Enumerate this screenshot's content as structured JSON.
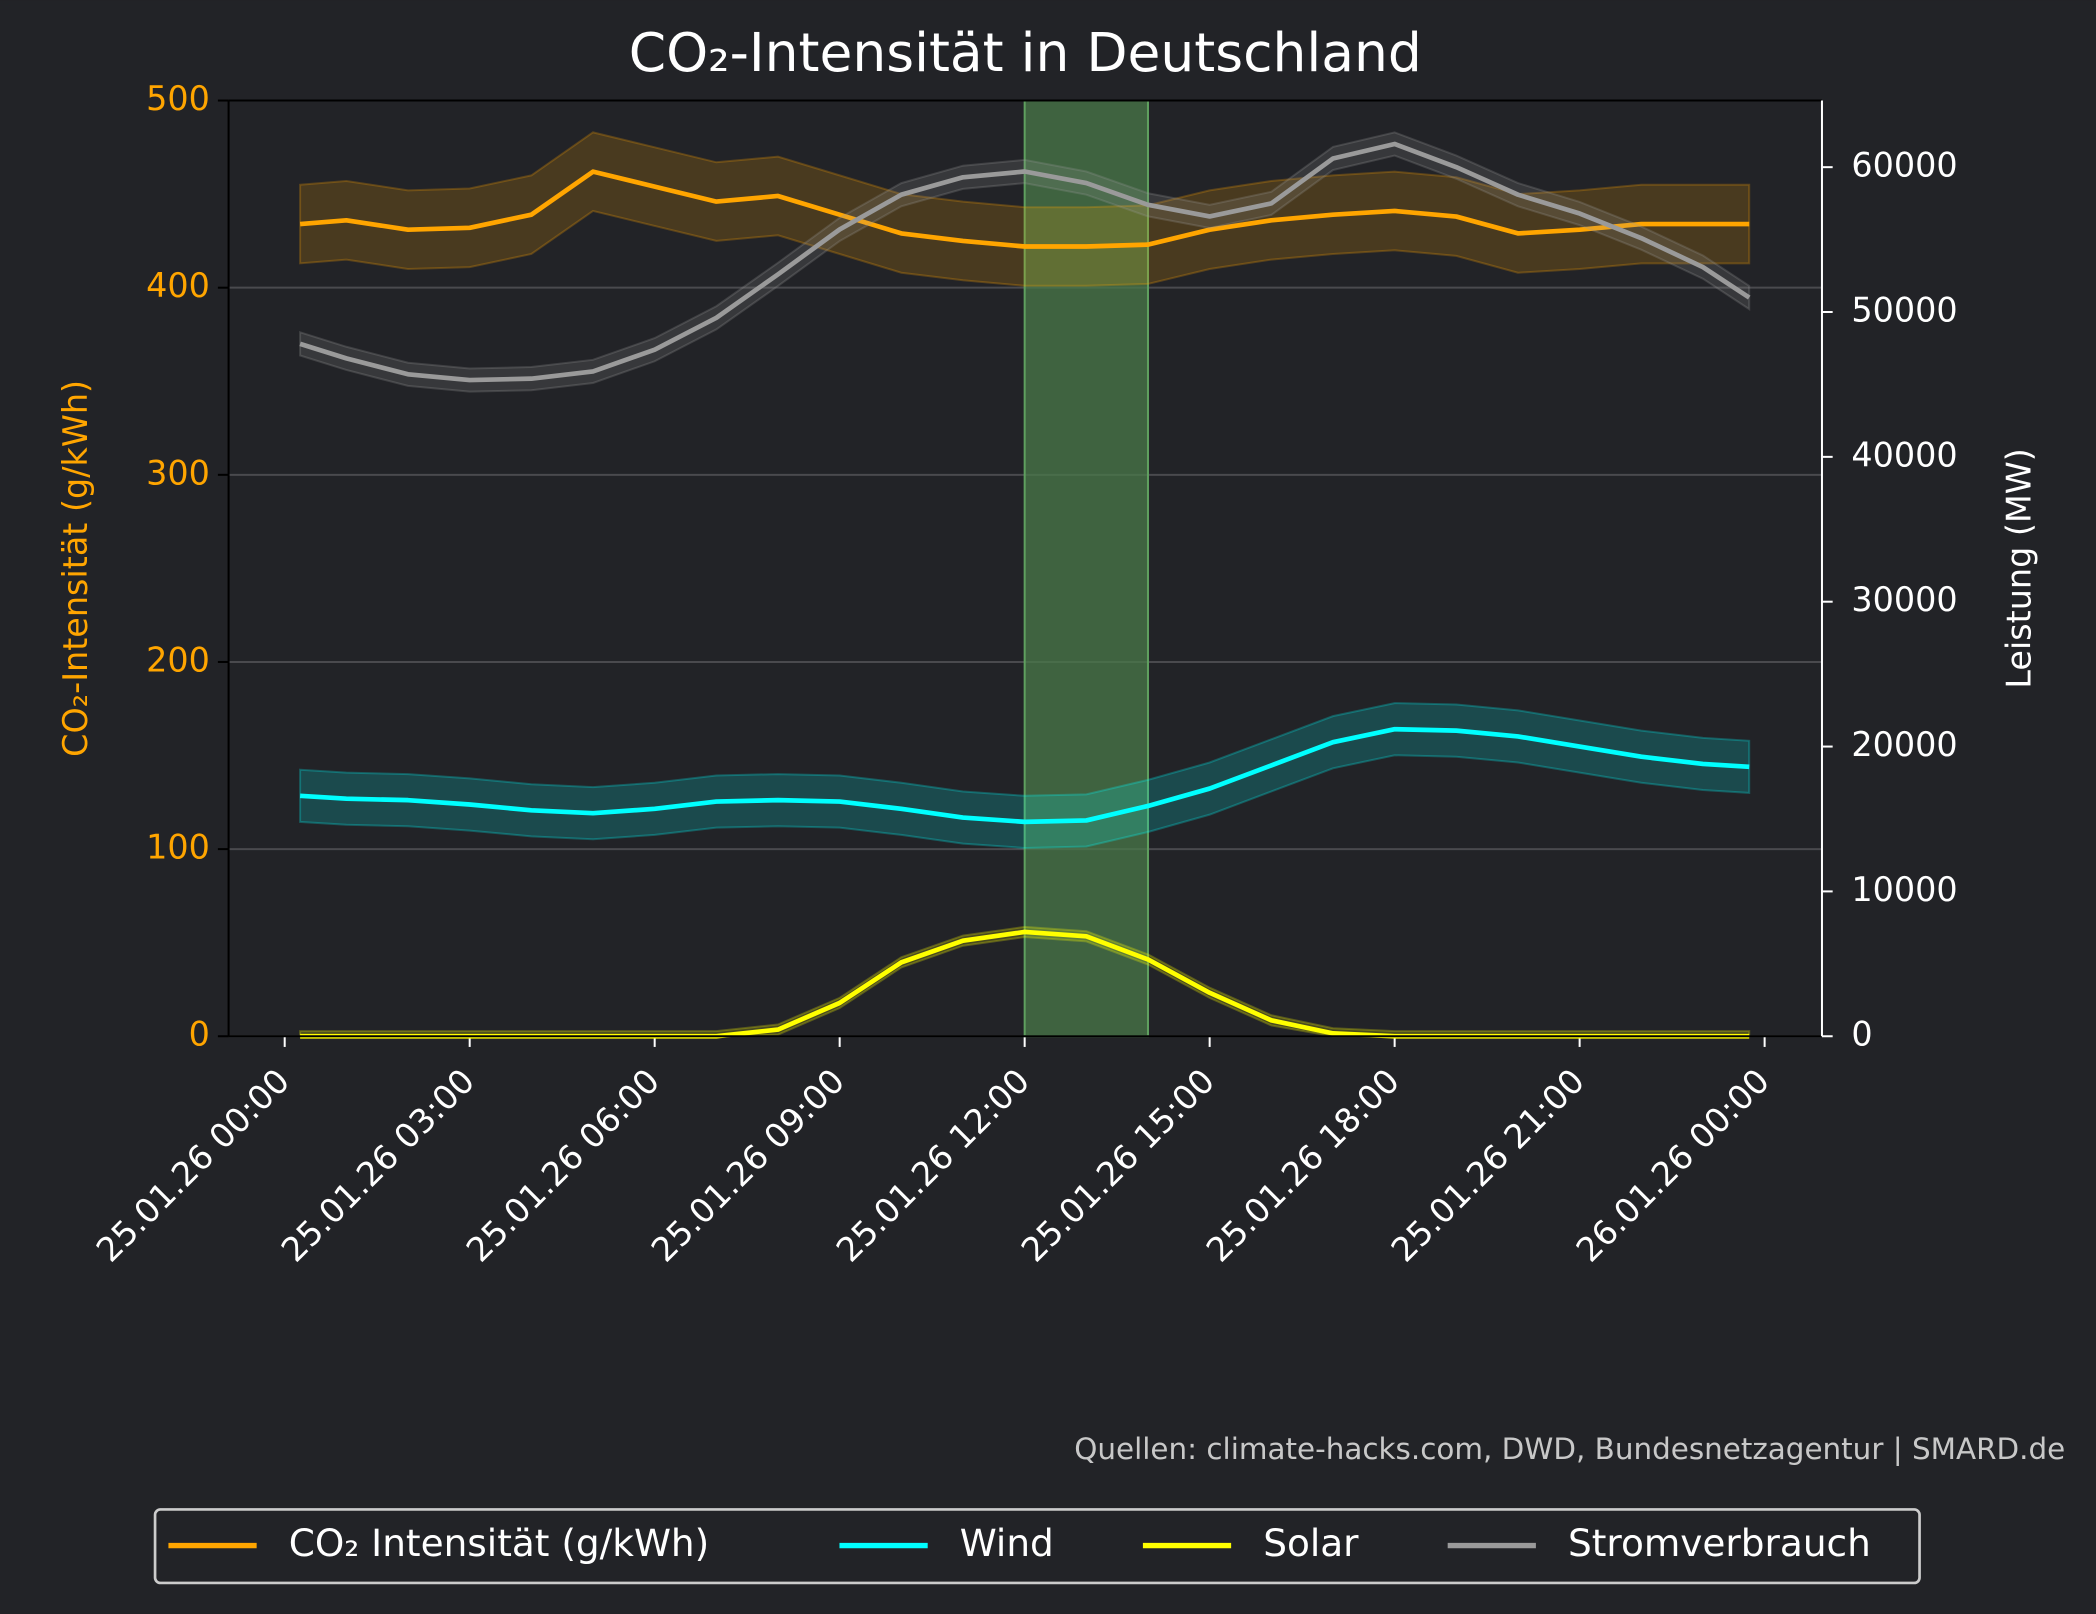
{
  "chart_data": {
    "type": "line",
    "title": "CO₂-Intensität in Deutschland",
    "ylabel": "CO₂-Intensität (g/kWh)",
    "y2label": "Leistung (MW)",
    "source": "Quellen: climate-hacks.com, DWD, Bundesnetzagentur | SMARD.de",
    "x": [
      0.25,
      1,
      2,
      3,
      4,
      5,
      6,
      7,
      8,
      9,
      10,
      11,
      12,
      13,
      14,
      15,
      16,
      17,
      18,
      19,
      20,
      21,
      22,
      23,
      23.75
    ],
    "xlim": [
      -0.91,
      24.93
    ],
    "xticks": [
      {
        "value": 0,
        "label": "25.01.26 00:00"
      },
      {
        "value": 3,
        "label": "25.01.26 03:00"
      },
      {
        "value": 6,
        "label": "25.01.26 06:00"
      },
      {
        "value": 9,
        "label": "25.01.26 09:00"
      },
      {
        "value": 12,
        "label": "25.01.26 12:00"
      },
      {
        "value": 15,
        "label": "25.01.26 15:00"
      },
      {
        "value": 18,
        "label": "25.01.26 18:00"
      },
      {
        "value": 21,
        "label": "25.01.26 21:00"
      },
      {
        "value": 24,
        "label": "26.01.26 00:00"
      }
    ],
    "ylim": [
      0,
      500
    ],
    "yticks": [
      0,
      100,
      200,
      300,
      400,
      500
    ],
    "y2lim": [
      0,
      64600
    ],
    "y2ticks": [
      0,
      10000,
      20000,
      30000,
      40000,
      50000,
      60000
    ],
    "grid": true,
    "legend": "bottom",
    "highlight": [
      12,
      14
    ],
    "highlight_color": "#4a7a4a",
    "series": [
      {
        "name": "CO₂ Intensität (g/kWh)",
        "color": "#ffa500",
        "axis": "y",
        "uncertainty": 21,
        "values": [
          434,
          436,
          431,
          432,
          439,
          462,
          454,
          446,
          449,
          439,
          429,
          425,
          422,
          422,
          423,
          431,
          436,
          439,
          441,
          438,
          429,
          431,
          434,
          434,
          434
        ]
      },
      {
        "name": "Wind",
        "color": "#00ffff",
        "axis": "y2",
        "uncertainty": 1800,
        "values": [
          16600,
          16400,
          16300,
          16000,
          15600,
          15400,
          15700,
          16200,
          16300,
          16200,
          15700,
          15100,
          14800,
          14900,
          15900,
          17100,
          18700,
          20300,
          21200,
          21100,
          20700,
          20000,
          19300,
          18800,
          18600
        ]
      },
      {
        "name": "Solar",
        "color": "#ffff00",
        "axis": "y2",
        "uncertainty": 350,
        "values": [
          0,
          0,
          0,
          0,
          0,
          0,
          0,
          0,
          460,
          2300,
          5100,
          6600,
          7200,
          6900,
          5300,
          3000,
          1100,
          200,
          0,
          0,
          0,
          0,
          0,
          0,
          0
        ]
      },
      {
        "name": "Stromverbrauch",
        "color": "#9a9a9a",
        "axis": "y2",
        "uncertainty": 800,
        "values": [
          47800,
          46800,
          45700,
          45300,
          45400,
          45900,
          47400,
          49600,
          52600,
          55700,
          58100,
          59300,
          59700,
          58900,
          57400,
          56600,
          57500,
          60600,
          61600,
          60000,
          58100,
          56800,
          55100,
          53100,
          51000
        ]
      }
    ]
  }
}
